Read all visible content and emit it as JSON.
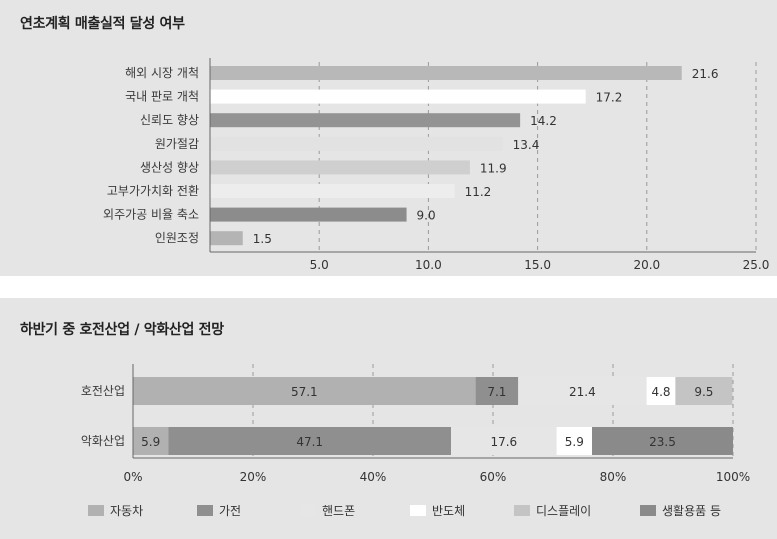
{
  "colors": {
    "panel_bg": "#e5e5e5",
    "white_gap": "#ffffff",
    "axis": "#666666",
    "grid": "#9a9a9a"
  },
  "chart_data": [
    {
      "type": "bar",
      "orientation": "horizontal",
      "title": "연초계획 매출실적 달성 여부",
      "categories": [
        "해외 시장 개척",
        "국내 판로 개척",
        "신뢰도 향상",
        "원가절감",
        "생산성 향상",
        "고부가가치화 전환",
        "외주가공 비율 축소",
        "인원조정"
      ],
      "values": [
        21.6,
        17.2,
        14.2,
        13.4,
        11.9,
        11.2,
        9.0,
        1.5
      ],
      "value_labels": [
        "21.6",
        "17.2",
        "14.2",
        "13.4",
        "11.9",
        "11.2",
        "9.0",
        "1.5"
      ],
      "bar_colors": [
        "#b8b8b8",
        "#ffffff",
        "#939393",
        "#e2e2e2",
        "#cfcfcf",
        "#ededed",
        "#8c8c8c",
        "#b4b4b4"
      ],
      "xlim": [
        0,
        25
      ],
      "xticks": [
        5,
        10,
        15,
        20,
        25
      ],
      "xtick_labels": [
        "5.0",
        "10.0",
        "15.0",
        "20.0",
        "25.0"
      ],
      "grid": "vertical dashed"
    },
    {
      "type": "bar",
      "orientation": "horizontal",
      "stacked": true,
      "percent": true,
      "title": "하반기 중 호전산업 / 악화산업 전망",
      "categories": [
        "호전산업",
        "악화산업"
      ],
      "series": [
        {
          "name": "자동차",
          "color": "#b1b1b1",
          "values": [
            57.1,
            5.9
          ],
          "labels": [
            "57.1",
            "5.9"
          ]
        },
        {
          "name": "가전",
          "color": "#8f8f8f",
          "values": [
            7.1,
            47.1
          ],
          "labels": [
            "7.1",
            "47.1"
          ]
        },
        {
          "name": "핸드폰",
          "color": "#e6e6e6",
          "values": [
            21.4,
            17.6
          ],
          "labels": [
            "21.4",
            "17.6"
          ]
        },
        {
          "name": "반도체",
          "color": "#ffffff",
          "values": [
            4.8,
            5.9
          ],
          "labels": [
            "4.8",
            "5.9"
          ]
        },
        {
          "name": "디스플레이",
          "color": "#c4c4c4",
          "values": [
            9.5,
            0
          ],
          "labels": [
            "9.5",
            ""
          ]
        },
        {
          "name": "생활용품 등",
          "color": "#8a8a8a",
          "values": [
            0,
            23.5
          ],
          "labels": [
            "",
            "23.5"
          ]
        }
      ],
      "xlim": [
        0,
        100
      ],
      "xticks": [
        0,
        20,
        40,
        60,
        80,
        100
      ],
      "xtick_labels": [
        "0%",
        "20%",
        "40%",
        "60%",
        "80%",
        "100%"
      ],
      "grid": "vertical dashed",
      "legend_position": "bottom"
    }
  ]
}
